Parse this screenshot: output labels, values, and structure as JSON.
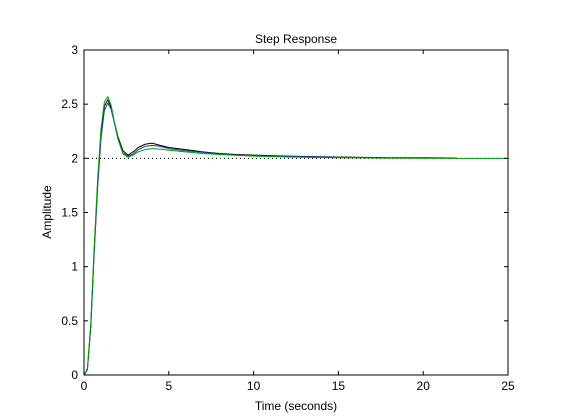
{
  "chart_data": {
    "type": "line",
    "title": "Step Response",
    "xlabel": "Time (seconds)",
    "ylabel": "Amplitude",
    "xlim": [
      0,
      25
    ],
    "ylim": [
      0,
      3
    ],
    "xticks": [
      0,
      5,
      10,
      15,
      20,
      25
    ],
    "yticks": [
      0,
      0.5,
      1,
      1.5,
      2,
      2.5,
      3
    ],
    "grid": false,
    "legend": "none",
    "reference_line": {
      "y": 2,
      "style": "dotted",
      "color": "#000000"
    },
    "series": [
      {
        "color": "#000000",
        "x": [
          0,
          0.2,
          0.4,
          0.6,
          0.8,
          1.0,
          1.2,
          1.4,
          1.6,
          1.8,
          2.0,
          2.3,
          2.6,
          2.9,
          3.2,
          3.6,
          4.0,
          4.5,
          5.0,
          6.0,
          7.0,
          8.0,
          9.0,
          10.0,
          12.0,
          14.0,
          16.0,
          18.0,
          20.0,
          22.0
        ],
        "y": [
          0,
          0.05,
          0.45,
          1.15,
          1.75,
          2.22,
          2.48,
          2.54,
          2.47,
          2.33,
          2.2,
          2.07,
          2.03,
          2.06,
          2.1,
          2.13,
          2.14,
          2.12,
          2.1,
          2.08,
          2.06,
          2.045,
          2.035,
          2.03,
          2.02,
          2.015,
          2.01,
          2.005,
          2.005,
          2.003
        ]
      },
      {
        "color": "#1f3ca0",
        "x": [
          0,
          0.2,
          0.4,
          0.6,
          0.8,
          1.0,
          1.2,
          1.4,
          1.6,
          1.8,
          2.0,
          2.3,
          2.6,
          2.9,
          3.2,
          3.6,
          4.0,
          4.5,
          5.0,
          6.0,
          7.0,
          8.0,
          9.0,
          10.0,
          12.0,
          14.0,
          16.0,
          18.0,
          20.0,
          22.0
        ],
        "y": [
          0,
          0.05,
          0.44,
          1.12,
          1.72,
          2.18,
          2.44,
          2.51,
          2.45,
          2.32,
          2.18,
          2.05,
          2.02,
          2.04,
          2.08,
          2.11,
          2.12,
          2.11,
          2.09,
          2.07,
          2.055,
          2.04,
          2.03,
          2.025,
          2.017,
          2.012,
          2.008,
          2.005,
          2.004,
          2.003
        ]
      },
      {
        "color": "#00a000",
        "x": [
          0,
          0.2,
          0.4,
          0.6,
          0.8,
          1.0,
          1.2,
          1.4,
          1.6,
          1.8,
          2.0,
          2.3,
          2.6,
          2.9,
          3.2,
          3.6,
          4.0,
          4.5,
          5.0,
          6.0,
          7.0,
          8.0,
          10.0,
          12.0,
          14.0,
          16.0,
          18.0,
          20.0,
          22.0,
          25.0
        ],
        "y": [
          0,
          0.06,
          0.48,
          1.18,
          1.8,
          2.27,
          2.52,
          2.57,
          2.49,
          2.33,
          2.18,
          2.04,
          2.01,
          2.03,
          2.06,
          2.08,
          2.09,
          2.085,
          2.075,
          2.06,
          2.045,
          2.035,
          2.02,
          2.012,
          2.007,
          2.004,
          2.002,
          2.001,
          2.0,
          2.0
        ]
      }
    ]
  }
}
